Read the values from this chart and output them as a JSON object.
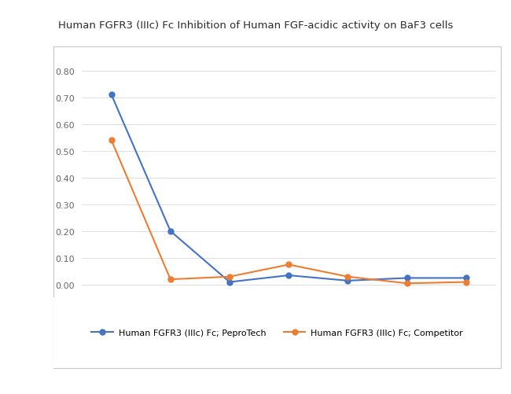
{
  "title": "Human FGFR3 (IIIc) Fc Inhibition of Human FGF-acidic activity on BaF3 cells",
  "series": [
    {
      "label": "Human FGFR3 (IIIc) Fc; PeproTech",
      "color": "#4472C4",
      "x": [
        1,
        2,
        3,
        4,
        5,
        6,
        7
      ],
      "y": [
        0.71,
        0.2,
        0.01,
        0.035,
        0.015,
        0.025,
        0.025
      ]
    },
    {
      "label": "Human FGFR3 (IIIc) Fc; Competitor",
      "color": "#ED7D31",
      "x": [
        1,
        2,
        3,
        4,
        5,
        6,
        7
      ],
      "y": [
        0.54,
        0.02,
        0.03,
        0.075,
        0.03,
        0.005,
        0.01
      ]
    }
  ],
  "ylim": [
    -0.025,
    0.83
  ],
  "yticks": [
    0.0,
    0.1,
    0.2,
    0.3,
    0.4,
    0.5,
    0.6,
    0.7,
    0.8
  ],
  "fig_bg_color": "#FFFFFF",
  "chart_bg_color": "#FFFFFF",
  "chart_border_color": "#C8C8C8",
  "grid_color": "#DEDEDE",
  "title_fontsize": 9.5,
  "legend_fontsize": 8,
  "tick_fontsize": 8,
  "tick_color": "#666666"
}
